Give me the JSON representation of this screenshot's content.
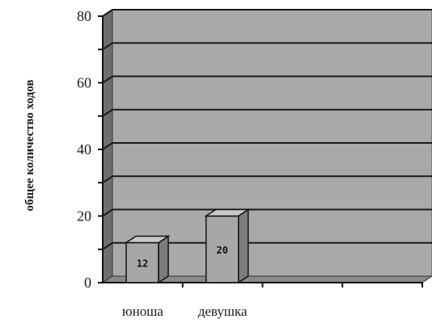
{
  "chart_data": {
    "type": "bar",
    "categories": [
      "юноша",
      "девушка"
    ],
    "values": [
      12,
      20
    ],
    "data_labels": [
      "12",
      "20"
    ],
    "ylabel": "общее количество ходов",
    "xlabel": "",
    "title": "",
    "ylim": [
      0,
      80
    ],
    "yticks": [
      "0",
      "20",
      "40",
      "60",
      "80"
    ],
    "grid": true,
    "style": "3d",
    "colors": {
      "wall": "#a9a9a9",
      "floor": "#8a8a8a",
      "bar_front": "#a7a7a7",
      "bar_side": "#7b7b7b",
      "bar_top": "#c8c8c8",
      "grid": "#1a1a1a"
    }
  }
}
